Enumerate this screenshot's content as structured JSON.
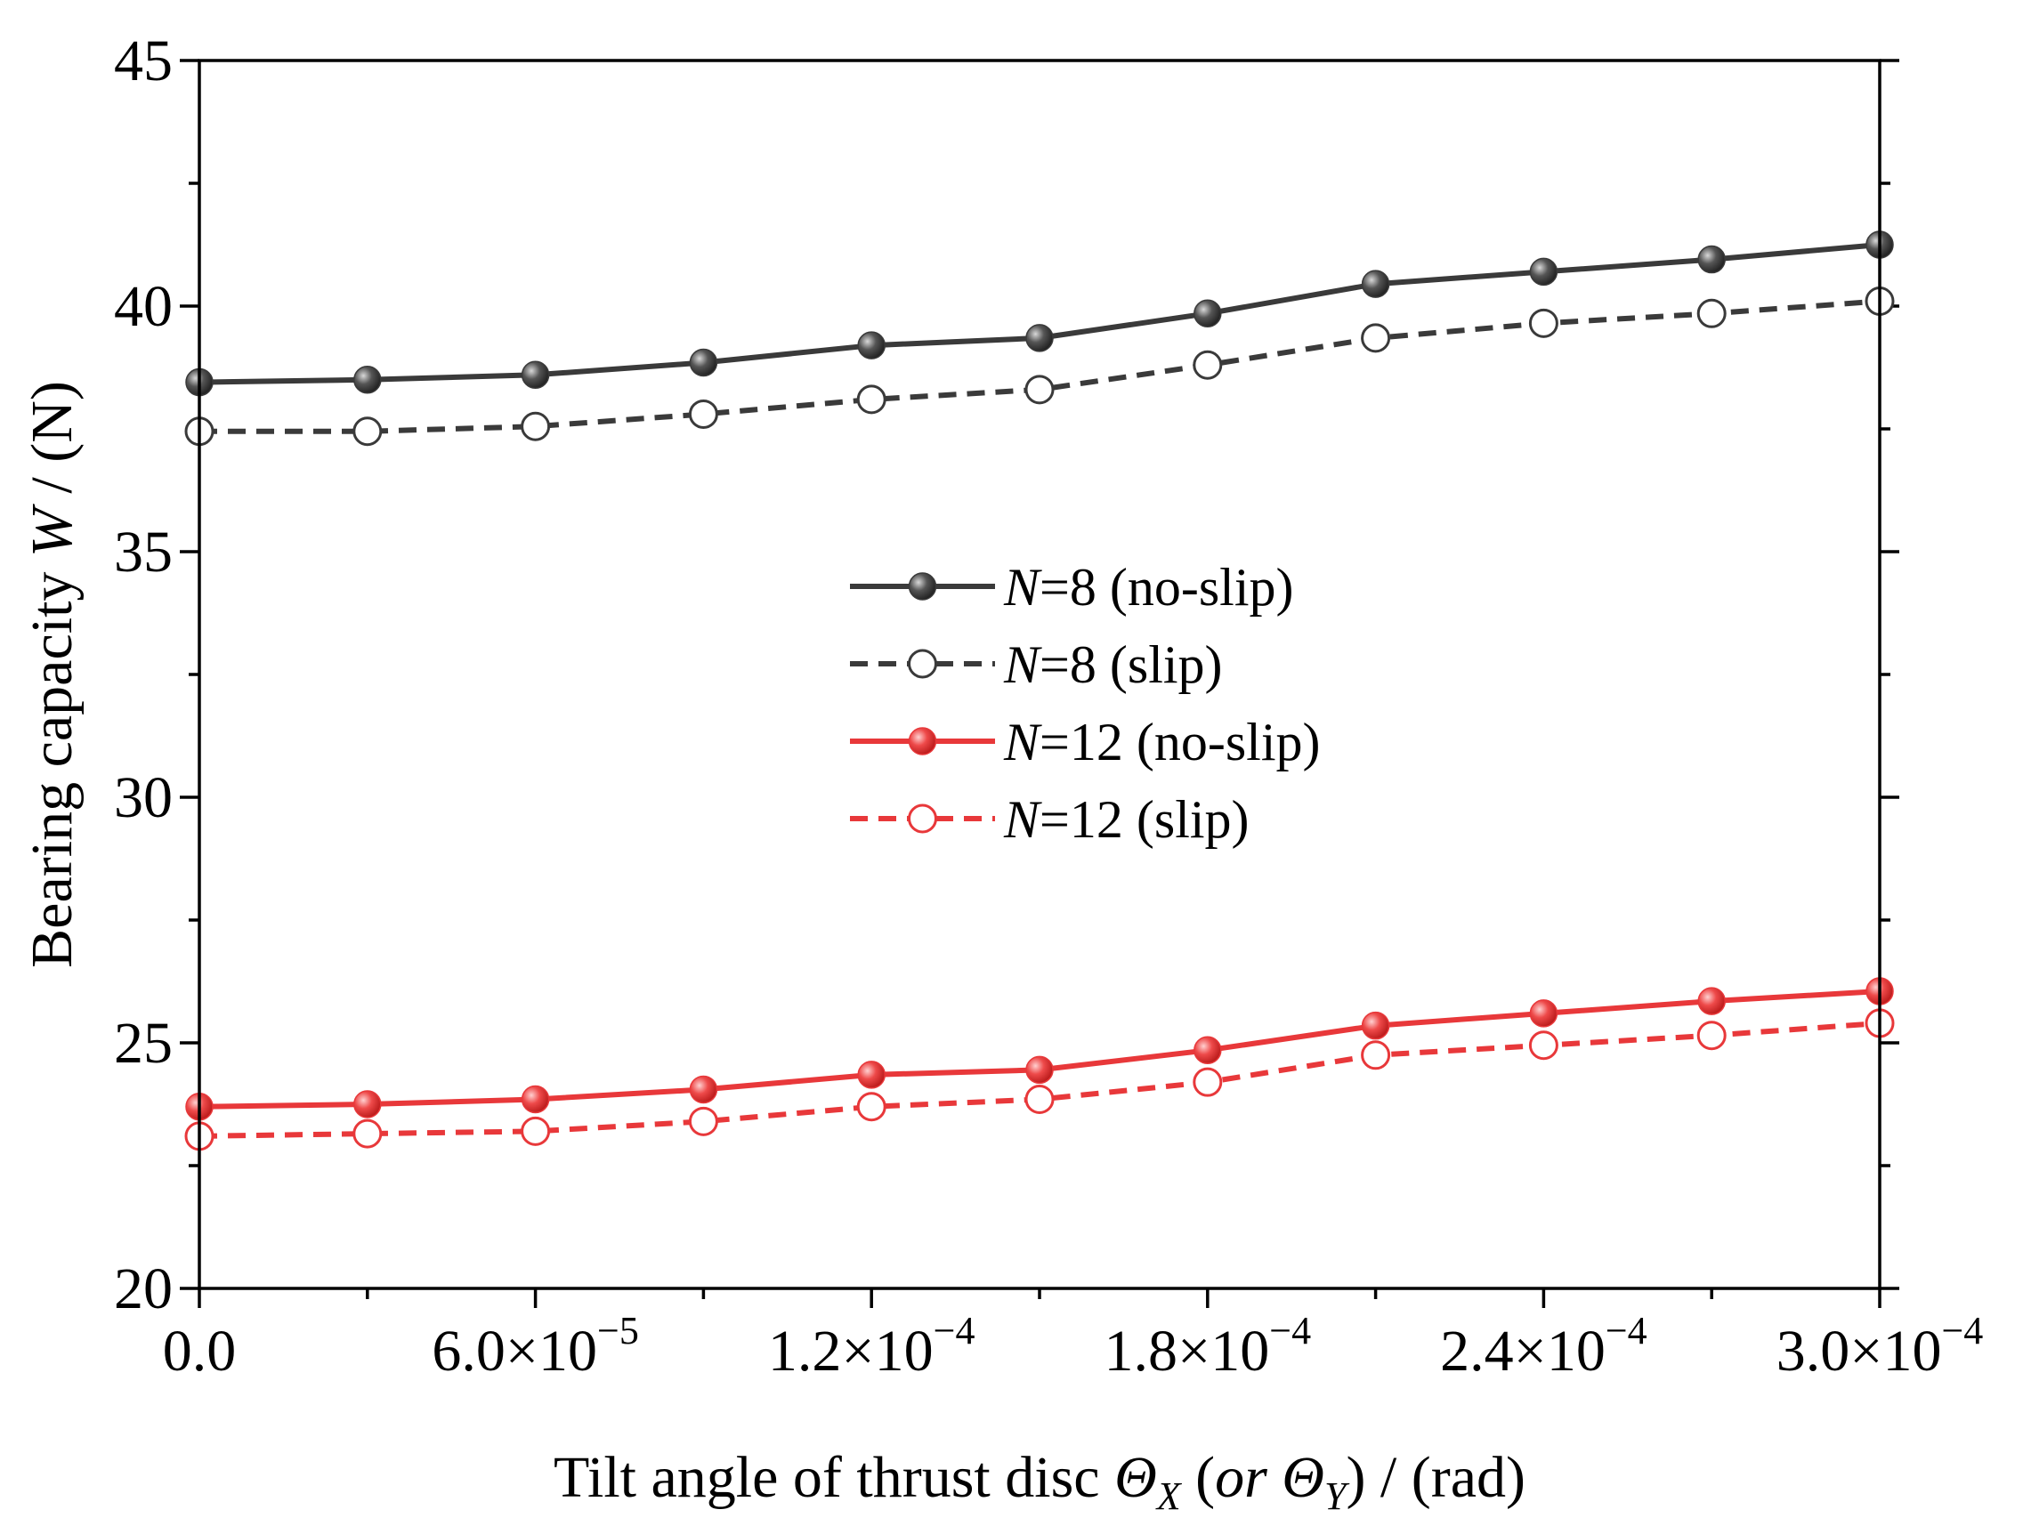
{
  "chart_data": {
    "type": "line",
    "title": "",
    "xlabel": {
      "prefix": "Tilt angle of thrust disc ",
      "symbol": "Θ",
      "sub1": "X",
      "middle": " (or ",
      "sub2": "Y",
      "suffix": ") / (rad)"
    },
    "ylabel": {
      "prefix": "Bearing capacity ",
      "symbol": "W",
      "suffix": " / (N)"
    },
    "xlim": [
      0,
      0.0003
    ],
    "ylim": [
      20,
      45
    ],
    "x_major_ticks": [
      0,
      6e-05,
      0.00012,
      0.00018,
      0.00024,
      0.0003
    ],
    "x_tick_labels": [
      {
        "mantissa": "0.0",
        "exponent": ""
      },
      {
        "mantissa": "6.0×10",
        "exponent": "−5"
      },
      {
        "mantissa": "1.2×10",
        "exponent": "−4"
      },
      {
        "mantissa": "1.8×10",
        "exponent": "−4"
      },
      {
        "mantissa": "2.4×10",
        "exponent": "−4"
      },
      {
        "mantissa": "3.0×10",
        "exponent": "−4"
      }
    ],
    "y_major_ticks": [
      20,
      25,
      30,
      35,
      40,
      45
    ],
    "y_tick_labels": [
      "20",
      "25",
      "30",
      "35",
      "40",
      "45"
    ],
    "x": [
      0,
      3e-05,
      6e-05,
      9e-05,
      0.00012,
      0.00015,
      0.00018,
      0.00021,
      0.00024,
      0.00027,
      0.0003
    ],
    "legend_position": "center",
    "series": [
      {
        "name": "N=8  (no-slip)",
        "label_symbol": "N",
        "label_rest": "=8  (no-slip)",
        "color": "#3a3a3a",
        "line_style": "solid",
        "marker": "filled-circle",
        "values": [
          38.45,
          38.5,
          38.6,
          38.85,
          39.2,
          39.35,
          39.85,
          40.45,
          40.7,
          40.95,
          41.25
        ]
      },
      {
        "name": "N=8  (slip)",
        "label_symbol": "N",
        "label_rest": "=8  (slip)",
        "color": "#3a3a3a",
        "line_style": "dashed",
        "marker": "open-circle",
        "values": [
          37.45,
          37.45,
          37.55,
          37.8,
          38.1,
          38.3,
          38.8,
          39.35,
          39.65,
          39.85,
          40.1
        ]
      },
      {
        "name": "N=12 (no-slip)",
        "label_symbol": "N",
        "label_rest": "=12 (no-slip)",
        "color": "#e8383a",
        "line_style": "solid",
        "marker": "filled-circle",
        "values": [
          23.7,
          23.75,
          23.85,
          24.05,
          24.35,
          24.45,
          24.85,
          25.35,
          25.6,
          25.85,
          26.05
        ]
      },
      {
        "name": "N=12 (slip)",
        "label_symbol": "N",
        "label_rest": "=12 (slip)",
        "color": "#e8383a",
        "line_style": "dashed",
        "marker": "open-circle",
        "values": [
          23.1,
          23.15,
          23.2,
          23.4,
          23.7,
          23.85,
          24.2,
          24.75,
          24.95,
          25.15,
          25.4
        ]
      }
    ]
  }
}
